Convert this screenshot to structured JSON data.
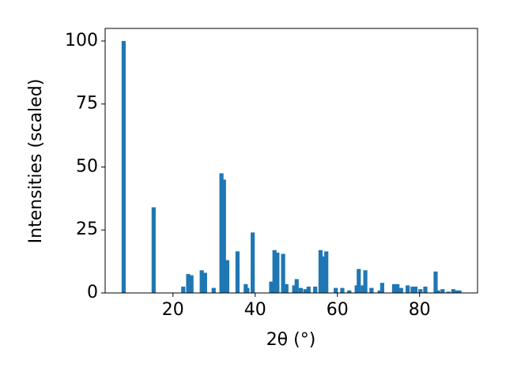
{
  "chart_data": {
    "type": "bar",
    "xlabel": "2θ (°)",
    "ylabel": "Intensities (scaled)",
    "color": "#1f77b4",
    "x": [
      8.0,
      15.3,
      22.5,
      23.7,
      24.5,
      27.0,
      27.8,
      29.9,
      31.8,
      32.4,
      33.2,
      35.7,
      37.7,
      38.1,
      39.4,
      43.9,
      44.7,
      45.4,
      46.8,
      47.6,
      49.5,
      50.1,
      51.1,
      52.2,
      53.0,
      54.6,
      55.9,
      56.5,
      57.3,
      59.6,
      61.2,
      62.9,
      64.7,
      65.2,
      66.2,
      66.8,
      68.3,
      70.3,
      70.9,
      73.8,
      74.6,
      75.5,
      77.1,
      78.3,
      79.0,
      80.2,
      81.4,
      83.9,
      84.5,
      85.6,
      87.0,
      88.2,
      88.9,
      89.7
    ],
    "values": [
      100,
      34,
      2.5,
      7.5,
      7,
      9,
      8,
      2,
      47.5,
      45,
      13,
      16.5,
      3.5,
      2,
      24,
      4.5,
      17,
      16,
      15.5,
      3.5,
      3,
      5.5,
      2,
      1.5,
      2.5,
      2.5,
      17,
      14.5,
      16.5,
      2,
      2,
      1,
      3,
      9.5,
      3,
      9,
      2,
      1,
      4,
      3.5,
      3.5,
      2,
      3,
      2.5,
      2.5,
      1.5,
      2.5,
      8.5,
      1,
      1.5,
      0.5,
      1.5,
      1,
      1
    ],
    "xlim": [
      3.5,
      94.1
    ],
    "ylim": [
      0,
      105
    ],
    "xticks": [
      20,
      40,
      60,
      80
    ],
    "yticks": [
      0,
      25,
      50,
      75,
      100
    ]
  }
}
